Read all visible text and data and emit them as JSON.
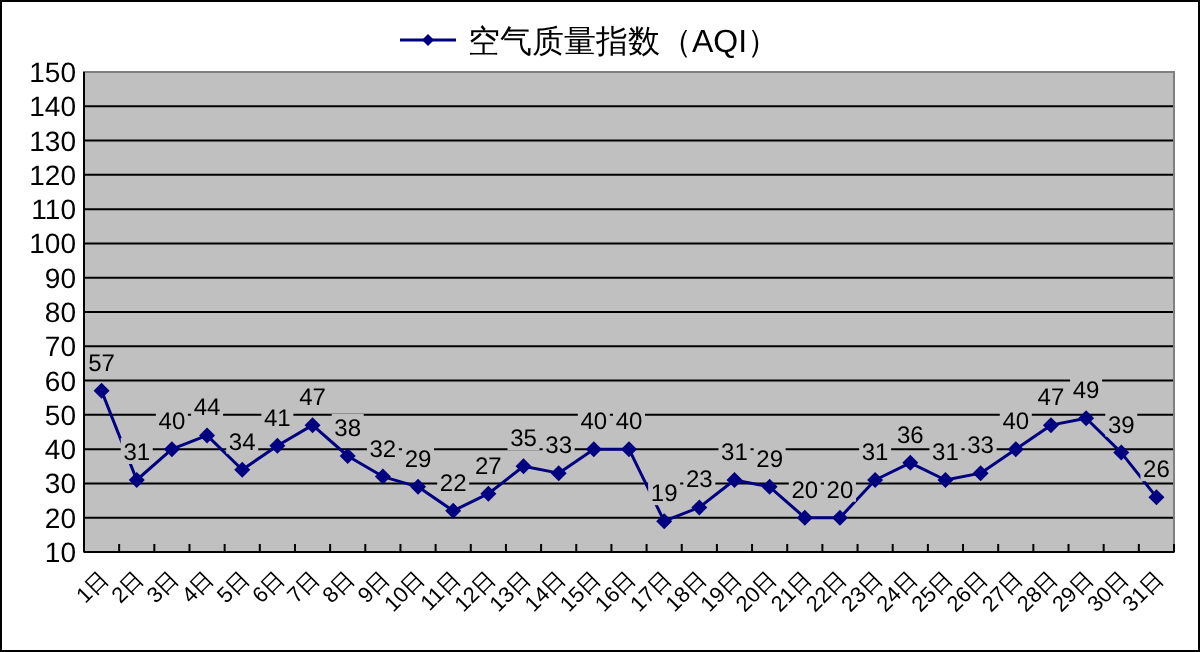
{
  "chart_data": {
    "type": "line",
    "categories": [
      "1日",
      "2日",
      "3日",
      "4日",
      "5日",
      "6日",
      "7日",
      "8日",
      "9日",
      "10日",
      "11日",
      "12日",
      "13日",
      "14日",
      "15日",
      "16日",
      "17日",
      "18日",
      "19日",
      "20日",
      "21日",
      "22日",
      "23日",
      "24日",
      "25日",
      "26日",
      "27日",
      "28日",
      "29日",
      "30日",
      "31日"
    ],
    "series": [
      {
        "name": "空气质量指数（AQI）",
        "color": "#000080",
        "values": [
          57,
          31,
          40,
          44,
          34,
          41,
          47,
          38,
          32,
          29,
          22,
          27,
          35,
          33,
          40,
          40,
          19,
          23,
          31,
          29,
          20,
          20,
          31,
          36,
          31,
          33,
          40,
          47,
          49,
          39,
          26
        ]
      }
    ],
    "ylim": [
      10,
      150
    ],
    "yticks": [
      10,
      20,
      30,
      40,
      50,
      60,
      70,
      80,
      90,
      100,
      110,
      120,
      130,
      140,
      150
    ],
    "grid": "y",
    "legend": "top",
    "marker": "diamond",
    "line_style": "solid",
    "data_labels": true
  }
}
